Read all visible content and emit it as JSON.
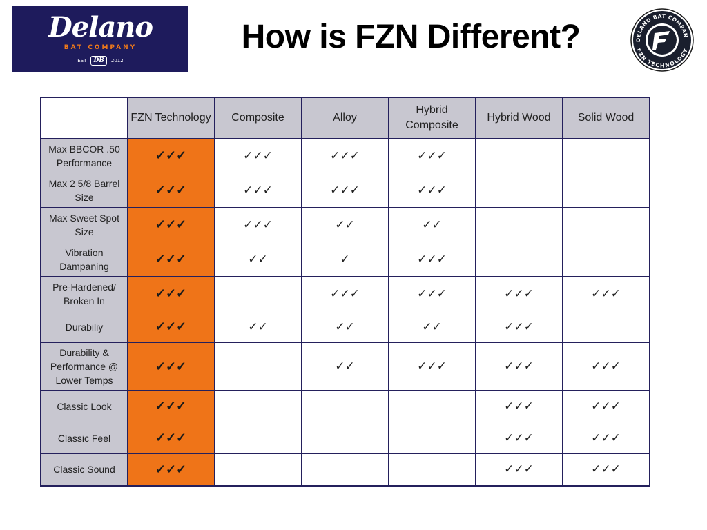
{
  "brand": {
    "logo_script": "Delano",
    "logo_sub": "BAT COMPANY",
    "est_label": "EST",
    "monogram": "DB",
    "year": "2012",
    "badge_top": "DELANO BAT COMPANY",
    "badge_bottom": "FZN TECHNOLOGY",
    "navy": "#1e1b5c",
    "orange": "#ef7418"
  },
  "title": "How is FZN Different?",
  "table": {
    "corner": "",
    "columns": [
      "FZN Technology",
      "Composite",
      "Alloy",
      "Hybrid Composite",
      "Hybrid Wood",
      "Solid Wood"
    ],
    "rows": [
      {
        "label": "Max BBCOR .50 Performance",
        "cells": [
          "✓✓✓",
          "✓✓✓",
          "✓✓✓",
          "✓✓✓",
          "",
          ""
        ]
      },
      {
        "label": "Max 2 5/8 Barrel Size",
        "cells": [
          "✓✓✓",
          "✓✓✓",
          "✓✓✓",
          "✓✓✓",
          "",
          ""
        ]
      },
      {
        "label": "Max Sweet Spot Size",
        "cells": [
          "✓✓✓",
          "✓✓✓",
          "✓✓",
          "✓✓",
          "",
          ""
        ]
      },
      {
        "label": "Vibration Dampaning",
        "cells": [
          "✓✓✓",
          "✓✓",
          "✓",
          "✓✓✓",
          "",
          ""
        ]
      },
      {
        "label": "Pre-Hardened/ Broken In",
        "cells": [
          "✓✓✓",
          "",
          "✓✓✓",
          "✓✓✓",
          "✓✓✓",
          "✓✓✓"
        ]
      },
      {
        "label": "Durabiliy",
        "cells": [
          "✓✓✓",
          "✓✓",
          "✓✓",
          "✓✓",
          "✓✓✓",
          ""
        ]
      },
      {
        "label": "Durability & Performance @ Lower Temps",
        "cells": [
          "✓✓✓",
          "",
          "✓✓",
          "✓✓✓",
          "✓✓✓",
          "✓✓✓"
        ]
      },
      {
        "label": "Classic Look",
        "cells": [
          "✓✓✓",
          "",
          "",
          "",
          "✓✓✓",
          "✓✓✓"
        ]
      },
      {
        "label": "Classic Feel",
        "cells": [
          "✓✓✓",
          "",
          "",
          "",
          "✓✓✓",
          "✓✓✓"
        ]
      },
      {
        "label": "Classic Sound",
        "cells": [
          "✓✓✓",
          "",
          "",
          "",
          "✓✓✓",
          "✓✓✓"
        ]
      }
    ]
  }
}
